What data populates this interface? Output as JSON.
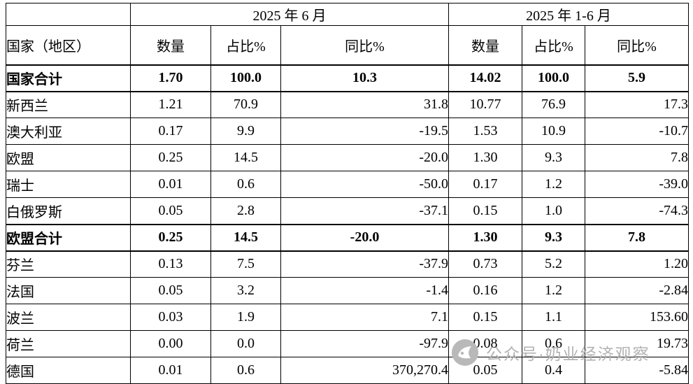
{
  "chart_data": {
    "type": "table",
    "title": "",
    "col_groups": [
      "2025 年 6 月",
      "2025 年 1-6 月"
    ],
    "row_header": "国家（地区）",
    "sub_headers": [
      "数量",
      "占比%",
      "同比%",
      "数量",
      "占比%",
      "同比%"
    ],
    "rows": [
      {
        "name": "国家合计",
        "bold": true,
        "values": [
          "1.70",
          "100.0",
          "10.3",
          "14.02",
          "100.0",
          "5.9"
        ]
      },
      {
        "name": "新西兰",
        "bold": false,
        "values": [
          "1.21",
          "70.9",
          "31.8",
          "10.77",
          "76.9",
          "17.3"
        ]
      },
      {
        "name": "澳大利亚",
        "bold": false,
        "values": [
          "0.17",
          "9.9",
          "-19.5",
          "1.53",
          "10.9",
          "-10.7"
        ]
      },
      {
        "name": "欧盟",
        "bold": false,
        "values": [
          "0.25",
          "14.5",
          "-20.0",
          "1.30",
          "9.3",
          "7.8"
        ]
      },
      {
        "name": "瑞士",
        "bold": false,
        "values": [
          "0.01",
          "0.6",
          "-50.0",
          "0.17",
          "1.2",
          "-39.0"
        ]
      },
      {
        "name": "白俄罗斯",
        "bold": false,
        "values": [
          "0.05",
          "2.8",
          "-37.1",
          "0.15",
          "1.0",
          "-74.3"
        ]
      },
      {
        "name": "欧盟合计",
        "bold": true,
        "values": [
          "0.25",
          "14.5",
          "-20.0",
          "1.30",
          "9.3",
          "7.8"
        ]
      },
      {
        "name": "芬兰",
        "bold": false,
        "values": [
          "0.13",
          "7.5",
          "-37.9",
          "0.73",
          "5.2",
          "1.20"
        ]
      },
      {
        "name": "法国",
        "bold": false,
        "values": [
          "0.05",
          "3.2",
          "-1.4",
          "0.16",
          "1.2",
          "-2.84"
        ]
      },
      {
        "name": "波兰",
        "bold": false,
        "values": [
          "0.03",
          "1.9",
          "7.1",
          "0.15",
          "1.1",
          "153.60"
        ]
      },
      {
        "name": "荷兰",
        "bold": false,
        "values": [
          "0.00",
          "0.0",
          "-97.9",
          "0.08",
          "0.6",
          "19.73"
        ]
      },
      {
        "name": "德国",
        "bold": false,
        "values": [
          "0.01",
          "0.6",
          "370,270.4",
          "0.05",
          "0.4",
          "-5.84"
        ]
      }
    ]
  },
  "watermark": {
    "text": "公众号·奶业经济观察"
  }
}
